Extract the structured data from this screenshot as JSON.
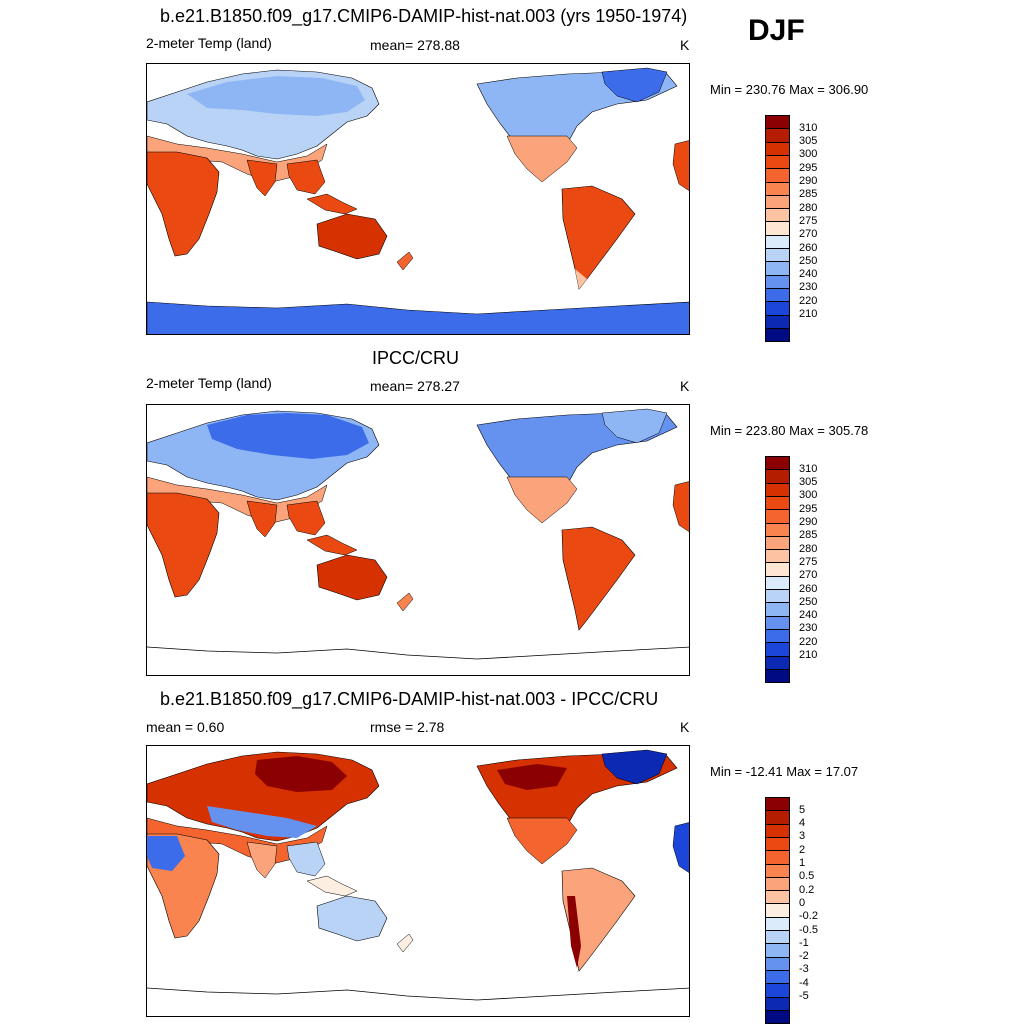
{
  "season": "DJF",
  "panels": [
    {
      "title": "b.e21.B1850.f09_g17.CMIP6-DAMIP-hist-nat.003 (yrs 1950-1974)",
      "left_label": "2-meter Temp (land)",
      "center_label": "mean= 278.88",
      "units": "K",
      "minmax": "Min = 230.76 Max = 306.90",
      "colorbar_labels": [
        "310",
        "305",
        "300",
        "295",
        "290",
        "285",
        "280",
        "275",
        "270",
        "260",
        "250",
        "240",
        "230",
        "220",
        "210"
      ],
      "colorbar_colors": [
        "#8b0000",
        "#b51d00",
        "#d63100",
        "#ea4a12",
        "#f3642e",
        "#f9844f",
        "#fba37a",
        "#fcc3a3",
        "#fde6d2",
        "#dcebfb",
        "#b9d3f7",
        "#8fb6f4",
        "#6592ef",
        "#3d6cea",
        "#1c45d9",
        "#0b29b3",
        "#000b83"
      ]
    },
    {
      "title": "IPCC/CRU",
      "left_label": "2-meter Temp (land)",
      "center_label": "mean= 278.27",
      "units": "K",
      "minmax": "Min = 223.80 Max = 305.78",
      "colorbar_labels": [
        "310",
        "305",
        "300",
        "295",
        "290",
        "285",
        "280",
        "275",
        "270",
        "260",
        "250",
        "240",
        "230",
        "220",
        "210"
      ],
      "colorbar_colors": [
        "#8b0000",
        "#b51d00",
        "#d63100",
        "#ea4a12",
        "#f3642e",
        "#f9844f",
        "#fba37a",
        "#fcc3a3",
        "#fde6d2",
        "#dcebfb",
        "#b9d3f7",
        "#8fb6f4",
        "#6592ef",
        "#3d6cea",
        "#1c45d9",
        "#0b29b3",
        "#000b83"
      ]
    },
    {
      "title": "b.e21.B1850.f09_g17.CMIP6-DAMIP-hist-nat.003 - IPCC/CRU",
      "left_label": "mean =   0.60",
      "center_label": "rmse =   2.78",
      "units": "K",
      "minmax": "Min = -12.41 Max =  17.07",
      "colorbar_labels": [
        "5",
        "4",
        "3",
        "2",
        "1",
        "0.5",
        "0.2",
        "0",
        "-0.2",
        "-0.5",
        "-1",
        "-2",
        "-3",
        "-4",
        "-5"
      ],
      "colorbar_colors": [
        "#8b0000",
        "#b51d00",
        "#d63100",
        "#ea4a12",
        "#f3642e",
        "#f9844f",
        "#fba37a",
        "#fcc3a3",
        "#fdeee2",
        "#dcebfb",
        "#b9d3f7",
        "#8fb6f4",
        "#6592ef",
        "#3d6cea",
        "#1c45d9",
        "#0b29b3",
        "#000b83"
      ]
    }
  ]
}
